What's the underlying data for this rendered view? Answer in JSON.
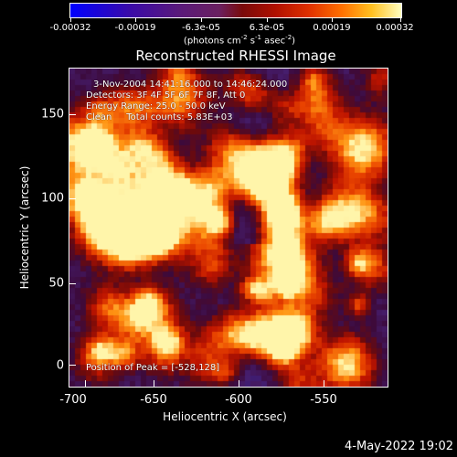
{
  "colorbar": {
    "tick_labels": [
      "-0.00032",
      "-0.00019",
      "-6.3e-05",
      "6.3e-05",
      "0.00019",
      "0.00032"
    ],
    "units": "(photons cm-2 s-1 asec-2)",
    "colors": [
      "#0000ff",
      "#5a1a7a",
      "#7a0a0a",
      "#e03000",
      "#ff7000",
      "#ffffc0"
    ]
  },
  "title": "Reconstructed RHESSI Image",
  "info": {
    "time_range": "3-Nov-2004 14:41:16.000 to 14:46:24.000",
    "detectors": "Detectors: 3F 4F 5F 6F 7F 8F, Att 0",
    "energy_range": "Energy Range: 25.0 - 50.0 keV",
    "clean_counts": "Clean     Total counts: 5.83E+03",
    "peak": "Position of Peak = [-528,128]"
  },
  "axes": {
    "xlabel": "Heliocentric X (arcsec)",
    "ylabel": "Heliocentric Y (arcsec)",
    "x_ticks": [
      "-700",
      "-650",
      "-600",
      "-550"
    ],
    "y_ticks": [
      "0",
      "50",
      "100",
      "150"
    ]
  },
  "timestamp": "4-May-2022 19:02"
}
